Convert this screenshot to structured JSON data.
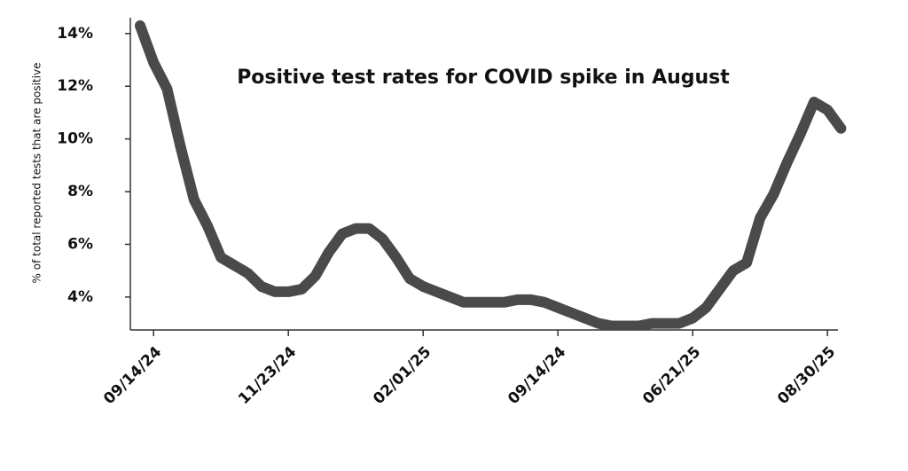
{
  "chart_data": {
    "type": "line",
    "title": "Positive test rates for COVID spike in August",
    "y_label": "% of total reported tests that are positive",
    "categories": [
      null,
      "09/14/24",
      null,
      null,
      null,
      null,
      null,
      null,
      null,
      null,
      null,
      "11/23/24",
      null,
      null,
      null,
      null,
      null,
      null,
      null,
      null,
      null,
      "02/01/25",
      null,
      null,
      null,
      null,
      null,
      null,
      null,
      null,
      null,
      "09/14/24",
      null,
      null,
      null,
      null,
      null,
      null,
      null,
      null,
      null,
      "06/21/25",
      null,
      null,
      null,
      null,
      null,
      null,
      null,
      null,
      null,
      "08/30/25",
      null
    ],
    "series": [
      {
        "name": null,
        "color": "#4a4a4a",
        "values": [
          14.3,
          12.9,
          11.9,
          9.7,
          7.7,
          6.7,
          5.5,
          5.2,
          4.9,
          4.4,
          4.2,
          4.2,
          4.3,
          4.8,
          5.7,
          6.4,
          6.6,
          6.6,
          6.2,
          5.5,
          4.7,
          4.4,
          4.2,
          4.0,
          3.8,
          3.8,
          3.8,
          3.8,
          3.9,
          3.9,
          3.8,
          3.6,
          3.4,
          3.2,
          3.0,
          2.9,
          2.9,
          2.9,
          3.0,
          3.0,
          3.0,
          3.2,
          3.6,
          4.3,
          5.0,
          5.3,
          7.0,
          7.9,
          9.1,
          10.2,
          11.4,
          11.1,
          10.4
        ]
      }
    ],
    "ylim": [
      2.75,
      14.6
    ],
    "yticks": [
      {
        "value": 4,
        "label": "4%"
      },
      {
        "value": 6,
        "label": "6%"
      },
      {
        "value": 8,
        "label": "8%"
      },
      {
        "value": 10,
        "label": "10%"
      },
      {
        "value": 12,
        "label": "12%"
      },
      {
        "value": 14,
        "label": "14%"
      }
    ],
    "grid": false
  }
}
